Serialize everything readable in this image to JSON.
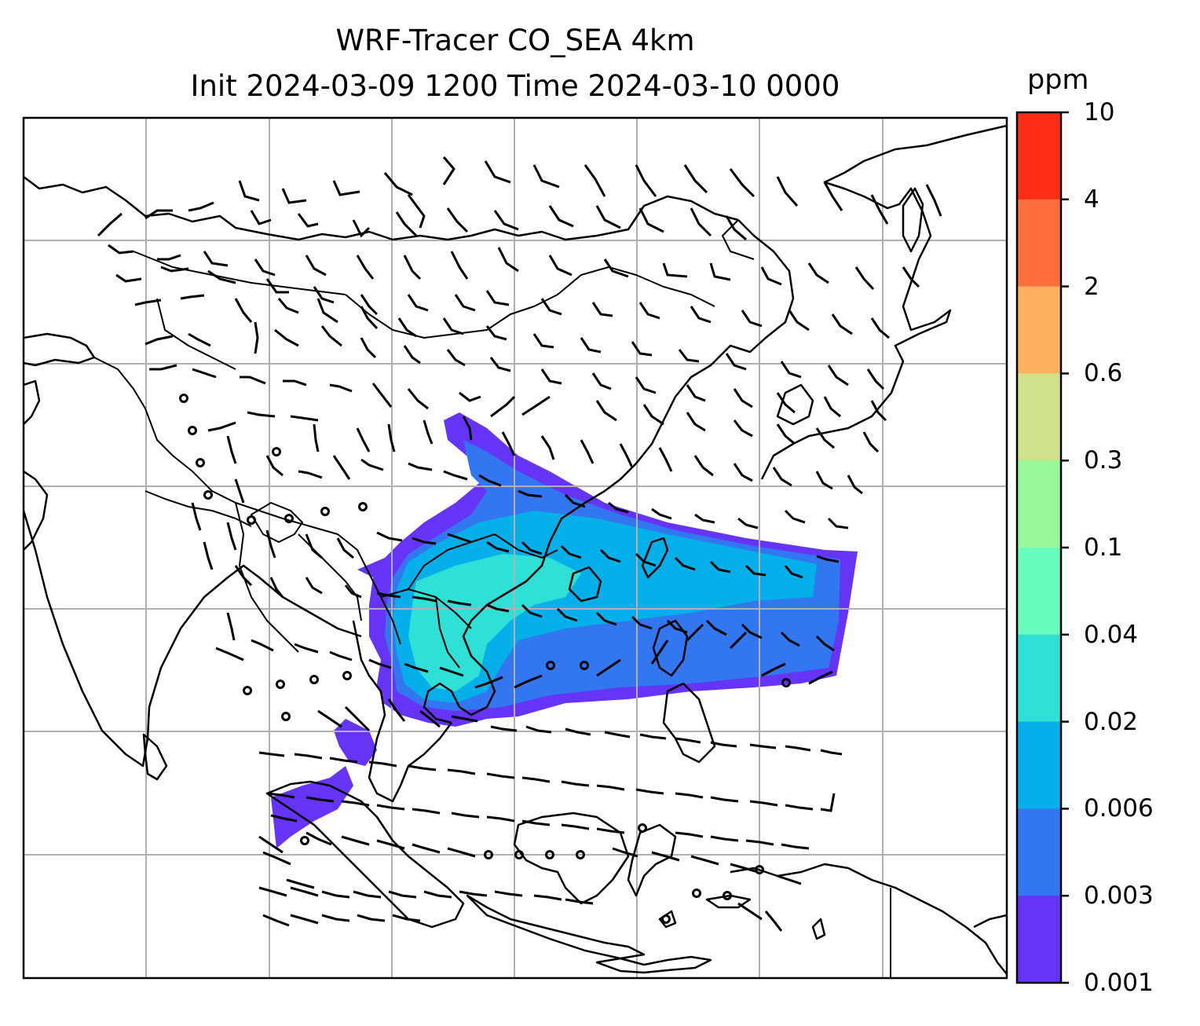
{
  "title": {
    "line1": "WRF-Tracer CO_SEA 4km",
    "line2": "Init 2024-03-09 1200 Time 2024-03-10 0000"
  },
  "colorbar": {
    "unit": "ppm",
    "labels": [
      "10",
      "4",
      "2",
      "0.6",
      "0.3",
      "0.1",
      "0.04",
      "0.02",
      "0.006",
      "0.003",
      "0.001"
    ],
    "colors": [
      "#ff2d16",
      "#ff6f3c",
      "#fdb160",
      "#cfe28a",
      "#98f99a",
      "#68fcbf",
      "#2fe0d6",
      "#05b0ea",
      "#3276f0",
      "#6534f6"
    ]
  },
  "map": {
    "layers": [
      "coastlines",
      "country-borders",
      "gridlines",
      "wind-barbs",
      "tracer-concentration"
    ],
    "plume_colors": {
      "level_0.001": "#6534f6",
      "level_0.003": "#3276f0",
      "level_0.006": "#05b0ea",
      "level_0.02": "#2fe0d6"
    }
  }
}
